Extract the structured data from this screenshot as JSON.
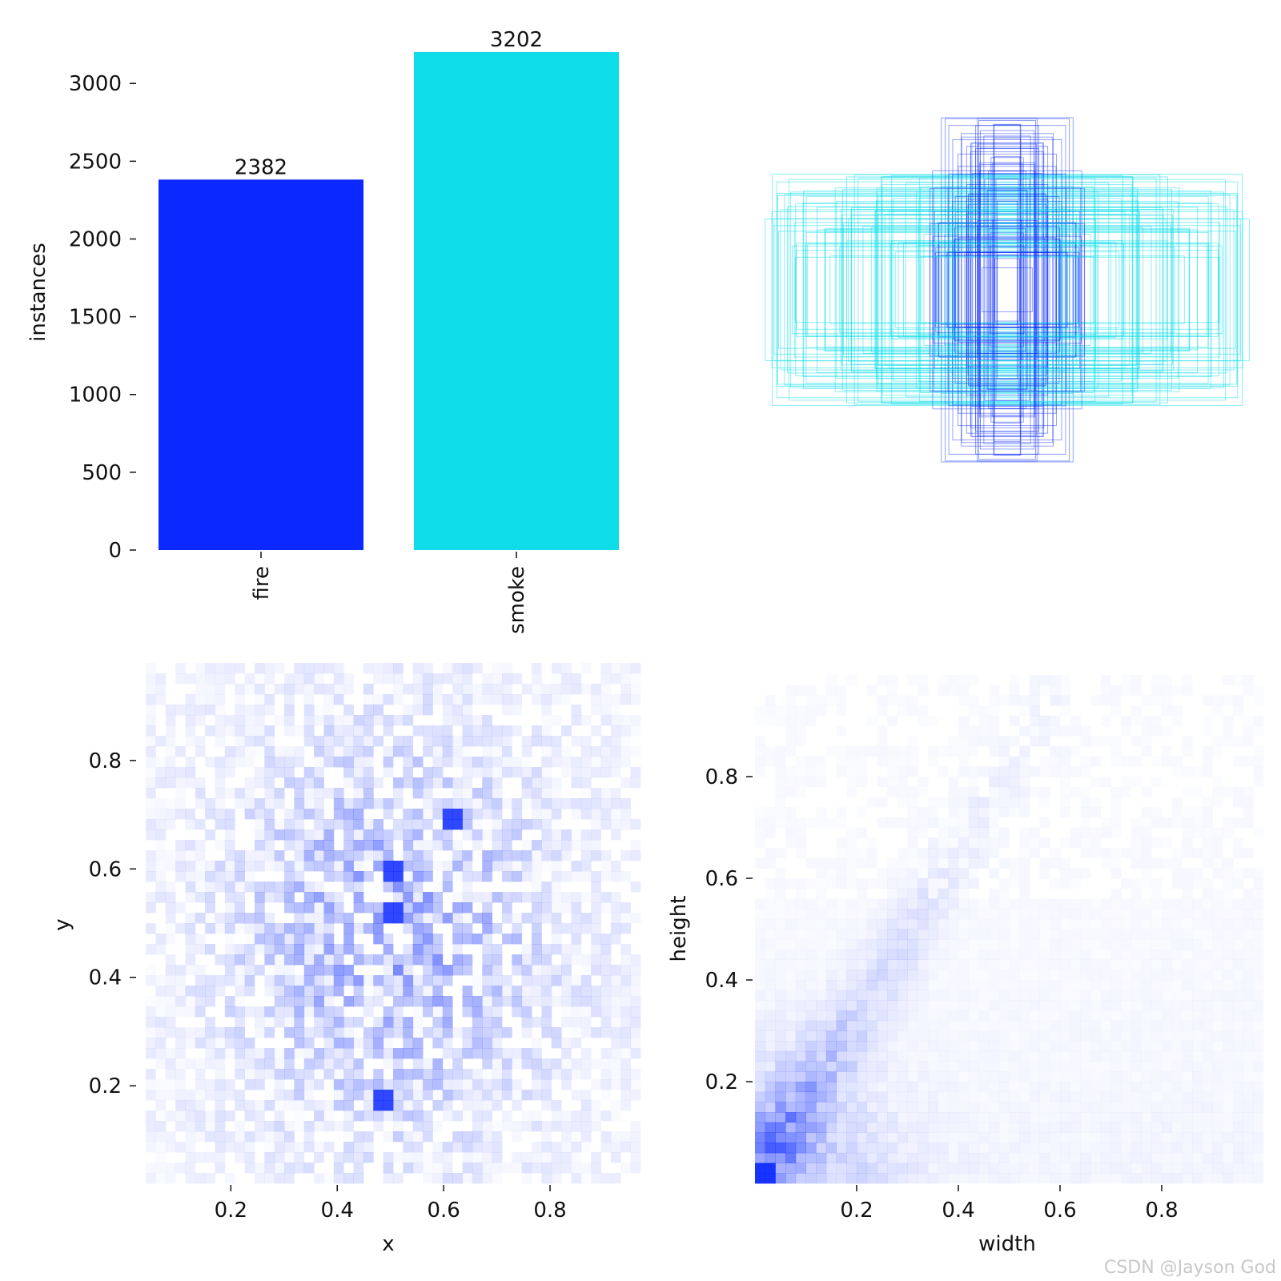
{
  "chart_data": [
    {
      "type": "bar",
      "ylabel": "instances",
      "categories": [
        "fire",
        "smoke"
      ],
      "values": [
        2382,
        3202
      ],
      "data_labels": [
        "2382",
        "3202"
      ],
      "ylim": [
        0,
        3202
      ],
      "yticks": [
        0,
        500,
        1000,
        1500,
        2000,
        2500,
        3000
      ],
      "ytick_labels": [
        "0",
        "500",
        "1000",
        "1500",
        "2000",
        "2500",
        "3000"
      ],
      "colors": [
        "#0a28ff",
        "#0edde9"
      ],
      "grid": false
    },
    {
      "type": "scatter",
      "title": "",
      "description_note": "overlaid bounding boxes centered at 0.5,0.5",
      "colors": [
        "#0a28ff",
        "#0edde9"
      ],
      "axes_visible": false
    },
    {
      "type": "heatmap",
      "xlabel": "x",
      "ylabel": "y",
      "xlim": [
        0.04,
        0.97
      ],
      "ylim": [
        0.02,
        0.98
      ],
      "xticks": [
        0.2,
        0.4,
        0.6,
        0.8
      ],
      "xtick_labels": [
        "0.2",
        "0.4",
        "0.6",
        "0.8"
      ],
      "yticks": [
        0.2,
        0.4,
        0.6,
        0.8
      ],
      "ytick_labels": [
        "0.2",
        "0.4",
        "0.6",
        "0.8"
      ],
      "hotspots": [
        [
          0.62,
          0.69
        ],
        [
          0.51,
          0.52
        ],
        [
          0.49,
          0.18
        ],
        [
          0.5,
          0.6
        ]
      ],
      "color": "#0a28ff"
    },
    {
      "type": "heatmap",
      "xlabel": "width",
      "ylabel": "height",
      "xlim": [
        0.0,
        1.0
      ],
      "ylim": [
        0.0,
        1.0
      ],
      "xticks": [
        0.2,
        0.4,
        0.6,
        0.8
      ],
      "xtick_labels": [
        "0.2",
        "0.4",
        "0.6",
        "0.8"
      ],
      "yticks": [
        0.2,
        0.4,
        0.6,
        0.8
      ],
      "ytick_labels": [
        "0.2",
        "0.4",
        "0.6",
        "0.8"
      ],
      "hotspots": [
        [
          0.02,
          0.02
        ]
      ],
      "color": "#0a28ff"
    }
  ],
  "watermark": "CSDN @Jayson God"
}
